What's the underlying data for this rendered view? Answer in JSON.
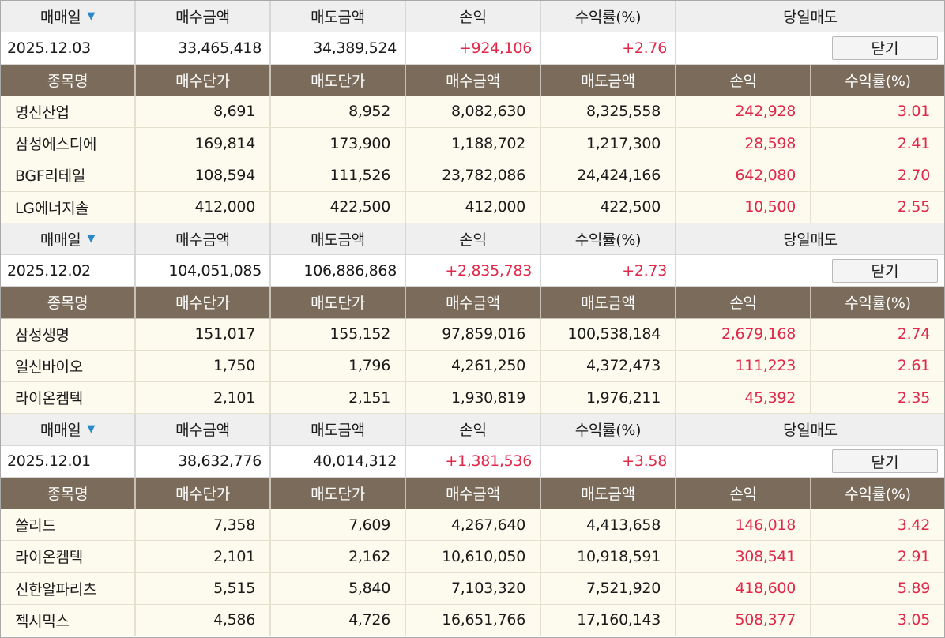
{
  "header": {
    "trade_date": "매매일",
    "buy_amount": "매수금액",
    "sell_amount": "매도금액",
    "pnl": "손익",
    "return_rate": "수익률(%)",
    "same_day_sell": "당일매도"
  },
  "subheader": {
    "stock_name": "종목명",
    "buy_price": "매수단가",
    "sell_price": "매도단가",
    "buy_amount": "매수금액",
    "sell_amount": "매도금액",
    "pnl": "손익",
    "return_rate": "수익률(%)"
  },
  "close_label": "닫기",
  "sort_icon": "sort-down-icon",
  "colors": {
    "profit": "#e0284a",
    "subheader_bg": "#7a6b5a",
    "row_bg": "#fdfaee",
    "sort_arrow": "#2a8ac8"
  },
  "groups": [
    {
      "date": "2025.12.03",
      "buy_amount": "33,465,418",
      "sell_amount": "34,389,524",
      "pnl": "+924,106",
      "return_rate": "+2.76",
      "items": [
        {
          "name": "명신산업",
          "buy_price": "8,691",
          "sell_price": "8,952",
          "buy_amount": "8,082,630",
          "sell_amount": "8,325,558",
          "pnl": "242,928",
          "rate": "3.01"
        },
        {
          "name": "삼성에스디에",
          "buy_price": "169,814",
          "sell_price": "173,900",
          "buy_amount": "1,188,702",
          "sell_amount": "1,217,300",
          "pnl": "28,598",
          "rate": "2.41"
        },
        {
          "name": "BGF리테일",
          "buy_price": "108,594",
          "sell_price": "111,526",
          "buy_amount": "23,782,086",
          "sell_amount": "24,424,166",
          "pnl": "642,080",
          "rate": "2.70"
        },
        {
          "name": "LG에너지솔",
          "buy_price": "412,000",
          "sell_price": "422,500",
          "buy_amount": "412,000",
          "sell_amount": "422,500",
          "pnl": "10,500",
          "rate": "2.55"
        }
      ]
    },
    {
      "date": "2025.12.02",
      "buy_amount": "104,051,085",
      "sell_amount": "106,886,868",
      "pnl": "+2,835,783",
      "return_rate": "+2.73",
      "items": [
        {
          "name": "삼성생명",
          "buy_price": "151,017",
          "sell_price": "155,152",
          "buy_amount": "97,859,016",
          "sell_amount": "100,538,184",
          "pnl": "2,679,168",
          "rate": "2.74"
        },
        {
          "name": "일신바이오",
          "buy_price": "1,750",
          "sell_price": "1,796",
          "buy_amount": "4,261,250",
          "sell_amount": "4,372,473",
          "pnl": "111,223",
          "rate": "2.61"
        },
        {
          "name": "라이온켐텍",
          "buy_price": "2,101",
          "sell_price": "2,151",
          "buy_amount": "1,930,819",
          "sell_amount": "1,976,211",
          "pnl": "45,392",
          "rate": "2.35"
        }
      ]
    },
    {
      "date": "2025.12.01",
      "buy_amount": "38,632,776",
      "sell_amount": "40,014,312",
      "pnl": "+1,381,536",
      "return_rate": "+3.58",
      "items": [
        {
          "name": "쏠리드",
          "buy_price": "7,358",
          "sell_price": "7,609",
          "buy_amount": "4,267,640",
          "sell_amount": "4,413,658",
          "pnl": "146,018",
          "rate": "3.42"
        },
        {
          "name": "라이온켐텍",
          "buy_price": "2,101",
          "sell_price": "2,162",
          "buy_amount": "10,610,050",
          "sell_amount": "10,918,591",
          "pnl": "308,541",
          "rate": "2.91"
        },
        {
          "name": "신한알파리츠",
          "buy_price": "5,515",
          "sell_price": "5,840",
          "buy_amount": "7,103,320",
          "sell_amount": "7,521,920",
          "pnl": "418,600",
          "rate": "5.89"
        },
        {
          "name": "젝시믹스",
          "buy_price": "4,586",
          "sell_price": "4,726",
          "buy_amount": "16,651,766",
          "sell_amount": "17,160,143",
          "pnl": "508,377",
          "rate": "3.05"
        }
      ]
    }
  ]
}
